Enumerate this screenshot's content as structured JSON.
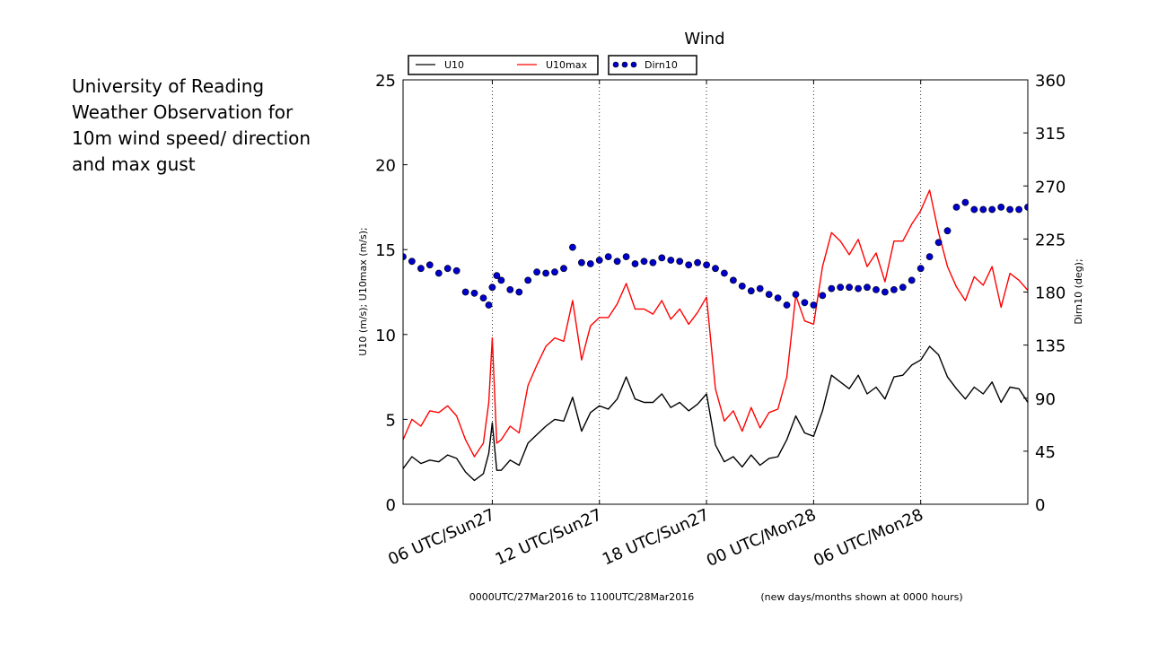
{
  "side_caption": {
    "lines": [
      "University of Reading",
      "Weather Observation for",
      "10m wind speed/ direction",
      "and max gust"
    ]
  },
  "chart_data": {
    "type": "line",
    "title": "Wind",
    "xlabel_left": "0000UTC/27Mar2016 to 1100UTC/28Mar2016",
    "xlabel_right": "(new days/months shown at 0000 hours)",
    "ylabel_left": "U10  (m/s); U10max  (m/s);",
    "ylabel_right": "Dirn10  (deg);",
    "x_unit": "hours since 0000UTC/27Mar2016",
    "xlim": [
      1,
      36
    ],
    "ylim_left": [
      0,
      25
    ],
    "ylim_right": [
      0,
      360
    ],
    "yticks_left": [
      0,
      5,
      10,
      15,
      20,
      25
    ],
    "yticks_right": [
      0,
      45,
      90,
      135,
      180,
      225,
      270,
      315,
      360
    ],
    "xticks": [
      {
        "x": 6,
        "label": "06 UTC/Sun27"
      },
      {
        "x": 12,
        "label": "12 UTC/Sun27"
      },
      {
        "x": 18,
        "label": "18 UTC/Sun27"
      },
      {
        "x": 24,
        "label": "00 UTC/Mon28"
      },
      {
        "x": 30,
        "label": "06 UTC/Mon28"
      }
    ],
    "vertical_gridlines": "dotted at each x tick",
    "legend_placement": "top, above plot",
    "series": [
      {
        "name": "U10",
        "axis": "left",
        "style": "line",
        "color": "#000000",
        "x": [
          1,
          1.5,
          2,
          2.5,
          3,
          3.5,
          4,
          4.5,
          5,
          5.5,
          5.8,
          6,
          6.25,
          6.5,
          7,
          7.5,
          8,
          8.5,
          9,
          9.5,
          10,
          10.5,
          11,
          11.5,
          12,
          12.5,
          13,
          13.5,
          14,
          14.5,
          15,
          15.5,
          16,
          16.5,
          17,
          17.5,
          18,
          18.5,
          19,
          19.5,
          20,
          20.5,
          21,
          21.5,
          22,
          22.5,
          23,
          23.5,
          24,
          24.5,
          25,
          25.5,
          26,
          26.5,
          27,
          27.5,
          28,
          28.5,
          29,
          29.5,
          30,
          30.5,
          31,
          31.5,
          32,
          32.5,
          33,
          33.5,
          34,
          34.5,
          35,
          35.5,
          36
        ],
        "values": [
          2.1,
          2.8,
          2.4,
          2.6,
          2.5,
          2.9,
          2.7,
          1.9,
          1.4,
          1.8,
          3.0,
          4.8,
          2.0,
          2.0,
          2.6,
          2.3,
          3.6,
          4.1,
          4.6,
          5.0,
          4.9,
          6.3,
          4.3,
          5.4,
          5.8,
          5.6,
          6.2,
          7.5,
          6.2,
          6.0,
          6.0,
          6.5,
          5.7,
          6.0,
          5.5,
          5.9,
          6.5,
          3.5,
          2.5,
          2.8,
          2.2,
          2.9,
          2.3,
          2.7,
          2.8,
          3.8,
          5.2,
          4.2,
          4.0,
          5.5,
          7.6,
          7.2,
          6.8,
          7.6,
          6.5,
          6.9,
          6.2,
          7.5,
          7.6,
          8.2,
          8.5,
          9.3,
          8.8,
          7.5,
          6.8,
          6.2,
          6.9,
          6.5,
          7.2,
          6.0,
          6.9,
          6.8,
          6.0
        ]
      },
      {
        "name": "U10max",
        "axis": "left",
        "style": "line",
        "color": "#ff0000",
        "x": [
          1,
          1.5,
          2,
          2.5,
          3,
          3.5,
          4,
          4.5,
          5,
          5.5,
          5.8,
          6,
          6.25,
          6.5,
          7,
          7.5,
          8,
          8.5,
          9,
          9.5,
          10,
          10.5,
          11,
          11.5,
          12,
          12.5,
          13,
          13.5,
          14,
          14.5,
          15,
          15.5,
          16,
          16.5,
          17,
          17.5,
          18,
          18.5,
          19,
          19.5,
          20,
          20.5,
          21,
          21.5,
          22,
          22.5,
          23,
          23.5,
          24,
          24.5,
          25,
          25.5,
          26,
          26.5,
          27,
          27.5,
          28,
          28.5,
          29,
          29.5,
          30,
          30.5,
          31,
          31.5,
          32,
          32.5,
          33,
          33.5,
          34,
          34.5,
          35,
          35.5,
          36
        ],
        "values": [
          3.8,
          5.0,
          4.6,
          5.5,
          5.4,
          5.8,
          5.2,
          3.8,
          2.8,
          3.6,
          6.0,
          9.8,
          3.6,
          3.8,
          4.6,
          4.2,
          7.0,
          8.2,
          9.3,
          9.8,
          9.6,
          12.0,
          8.5,
          10.5,
          11.0,
          11.0,
          11.8,
          13.0,
          11.5,
          11.5,
          11.2,
          12.0,
          10.9,
          11.5,
          10.6,
          11.3,
          12.2,
          6.8,
          4.9,
          5.5,
          4.3,
          5.7,
          4.5,
          5.4,
          5.6,
          7.5,
          12.3,
          10.8,
          10.6,
          14.0,
          16.0,
          15.5,
          14.7,
          15.6,
          14.0,
          14.8,
          13.1,
          15.5,
          15.5,
          16.5,
          17.3,
          18.5,
          16.0,
          14.0,
          12.8,
          12.0,
          13.4,
          12.9,
          14.0,
          11.6,
          13.6,
          13.2,
          12.6
        ]
      },
      {
        "name": "Dirn10",
        "axis": "right",
        "style": "markers",
        "color": "#0000cc",
        "x": [
          1,
          1.5,
          2,
          2.5,
          3,
          3.5,
          4,
          4.5,
          5,
          5.5,
          5.8,
          6,
          6.25,
          6.5,
          7,
          7.5,
          8,
          8.5,
          9,
          9.5,
          10,
          10.5,
          11,
          11.5,
          12,
          12.5,
          13,
          13.5,
          14,
          14.5,
          15,
          15.5,
          16,
          16.5,
          17,
          17.5,
          18,
          18.5,
          19,
          19.5,
          20,
          20.5,
          21,
          21.5,
          22,
          22.5,
          23,
          23.5,
          24,
          24.5,
          25,
          25.5,
          26,
          26.5,
          27,
          27.5,
          28,
          28.5,
          29,
          29.5,
          30,
          30.5,
          31,
          31.5,
          32,
          32.5,
          33,
          33.5,
          34,
          34.5,
          35,
          35.5,
          36
        ],
        "values": [
          210,
          206,
          200,
          203,
          196,
          200,
          198,
          180,
          179,
          175,
          169,
          184,
          194,
          190,
          182,
          180,
          190,
          197,
          196,
          197,
          200,
          218,
          205,
          204,
          207,
          210,
          206,
          210,
          204,
          206,
          205,
          209,
          207,
          206,
          203,
          205,
          203,
          200,
          196,
          190,
          185,
          181,
          183,
          178,
          175,
          169,
          178,
          171,
          169,
          177,
          183,
          184,
          184,
          183,
          184,
          182,
          180,
          182,
          184,
          190,
          200,
          210,
          222,
          232,
          252,
          256,
          250,
          250,
          250,
          252,
          250,
          250,
          252
        ]
      }
    ]
  }
}
